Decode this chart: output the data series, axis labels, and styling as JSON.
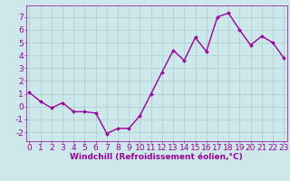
{
  "x": [
    0,
    1,
    2,
    3,
    4,
    5,
    6,
    7,
    8,
    9,
    10,
    11,
    12,
    13,
    14,
    15,
    16,
    17,
    18,
    19,
    20,
    21,
    22,
    23
  ],
  "y": [
    1.1,
    0.4,
    -0.1,
    0.3,
    -0.4,
    -0.4,
    -0.5,
    -2.1,
    -1.7,
    -1.7,
    -0.7,
    1.0,
    2.7,
    4.4,
    3.6,
    5.4,
    4.3,
    7.0,
    7.3,
    6.0,
    4.8,
    5.5,
    5.0,
    3.8
  ],
  "line_color": "#990099",
  "marker_color": "#990099",
  "bg_color": "#cce8ea",
  "grid_color": "#aacccc",
  "xlabel": "Windchill (Refroidissement éolien,°C)",
  "yticks": [
    -2,
    -1,
    0,
    1,
    2,
    3,
    4,
    5,
    6,
    7
  ],
  "xticks": [
    0,
    1,
    2,
    3,
    4,
    5,
    6,
    7,
    8,
    9,
    10,
    11,
    12,
    13,
    14,
    15,
    16,
    17,
    18,
    19,
    20,
    21,
    22,
    23
  ],
  "xlim": [
    -0.3,
    23.3
  ],
  "ylim": [
    -2.7,
    7.9
  ],
  "tick_color": "#990099",
  "font_size": 6.5,
  "xlabel_fontsize": 6.5,
  "linewidth": 1.0,
  "markersize": 2.0
}
